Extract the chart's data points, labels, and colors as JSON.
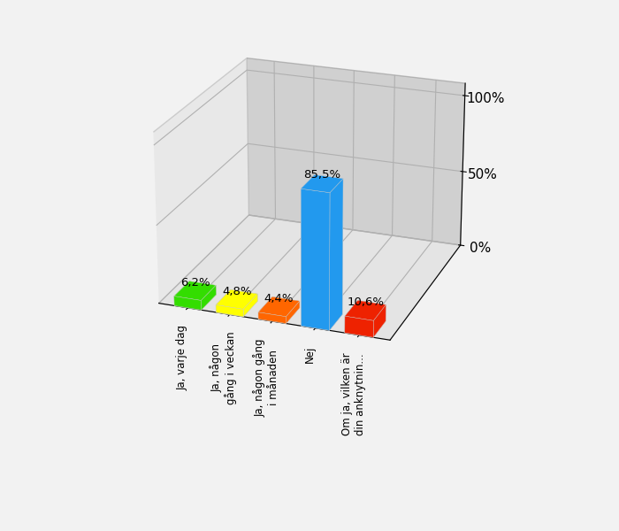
{
  "categories": [
    "Ja, varje dag",
    "Ja, någon\ngång i veckan",
    "Ja, någon gång\ni månaden",
    "Nej",
    "Om ja, vilken är\ndin anknytnin..."
  ],
  "values": [
    6.2,
    4.8,
    4.4,
    85.5,
    10.6
  ],
  "bar_colors": [
    "#33dd00",
    "#ffff00",
    "#ff6600",
    "#2299ee",
    "#ee2200"
  ],
  "bar_colors_dark": [
    "#228800",
    "#bbbb00",
    "#cc4400",
    "#1166bb",
    "#bb0000"
  ],
  "bar_colors_top": [
    "#55ee22",
    "#dddd00",
    "#ee7722",
    "#44aaff",
    "#ee3322"
  ],
  "yticks": [
    0,
    50,
    100
  ],
  "ytick_labels": [
    "0%",
    "50%",
    "100%"
  ],
  "background_color": "#f2f2f2",
  "left_wall_color": "#b0b0b0",
  "back_wall_color": "#e0e0e0",
  "floor_color": "#d8d8d8"
}
